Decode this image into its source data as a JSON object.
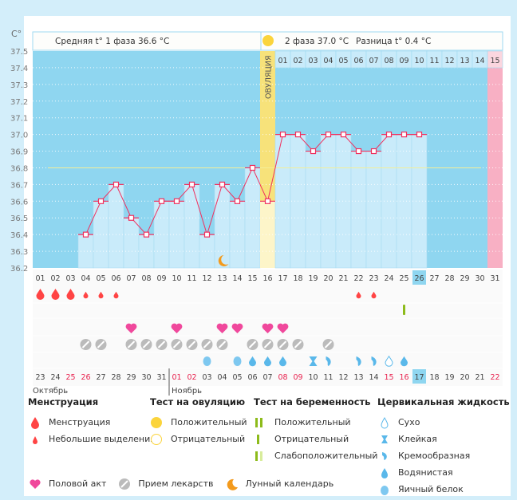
{
  "header": {
    "unit": "C°",
    "phase1": "Средняя t° 1 фаза 36.6 °C",
    "phase2": "2 фаза 37.0 °C",
    "diff": "Разница t° 0.4 °C",
    "ovulation": "ОВУЛЯЦИЯ"
  },
  "colors": {
    "bg": "#8fd6f0",
    "bar": "#c9ebfa",
    "line": "#f0305e",
    "ovulation": "#f7e27a",
    "next_period": "#f8b0c4",
    "coverline": "#f3ee9a"
  },
  "chart_data": {
    "type": "line",
    "ylim": [
      36.2,
      37.5
    ],
    "y_ticks": [
      "37.5",
      "37.4",
      "37.3",
      "37.2",
      "37.1",
      "37.0",
      "36.9",
      "36.8",
      "36.7",
      "36.6",
      "36.5",
      "36.4",
      "36.3",
      "36.2"
    ],
    "coverline": 36.8,
    "cycle_days": [
      "01",
      "02",
      "03",
      "04",
      "05",
      "06",
      "07",
      "08",
      "09",
      "10",
      "11",
      "12",
      "13",
      "14",
      "15",
      "16",
      "17",
      "18",
      "19",
      "20",
      "21",
      "22",
      "23",
      "24",
      "25",
      "26",
      "27",
      "28",
      "29",
      "30",
      "31"
    ],
    "post_ovulation_days": [
      "01",
      "02",
      "03",
      "04",
      "05",
      "06",
      "07",
      "08",
      "09",
      "10",
      "11",
      "12",
      "13",
      "14",
      "15"
    ],
    "temperatures": [
      null,
      null,
      null,
      36.4,
      36.6,
      36.7,
      36.5,
      36.4,
      36.6,
      36.6,
      36.7,
      36.4,
      36.7,
      36.6,
      36.8,
      36.6,
      37.0,
      37.0,
      36.9,
      37.0,
      37.0,
      36.9,
      36.9,
      37.0,
      37.0,
      37.0,
      null,
      null,
      null,
      null,
      null
    ],
    "ovulation_day": 16,
    "today_day": 26,
    "lunar_day": 13
  },
  "calendar": {
    "dates": [
      "23",
      "24",
      "25",
      "26",
      "27",
      "28",
      "29",
      "30",
      "31",
      "01",
      "02",
      "03",
      "04",
      "05",
      "06",
      "07",
      "08",
      "09",
      "10",
      "11",
      "12",
      "13",
      "14",
      "15",
      "16",
      "17",
      "18",
      "19",
      "20",
      "21",
      "22"
    ],
    "weekend_days": [
      3,
      4,
      10,
      11,
      17,
      18,
      24,
      25,
      31
    ],
    "months": [
      "Октябрь",
      "Ноябрь"
    ]
  },
  "markers": {
    "menstruation_heavy": [
      1,
      2,
      3
    ],
    "menstruation_light": [
      4,
      5,
      6,
      22,
      23
    ],
    "pregnancy_positive": [
      25
    ],
    "sex": [
      7,
      10,
      13,
      14,
      16,
      17
    ],
    "medication": [
      4,
      5,
      7,
      8,
      9,
      10,
      11,
      12,
      13,
      15,
      16,
      17,
      18,
      20
    ],
    "cervical": {
      "12": "egg-white",
      "14": "egg-white",
      "15": "watery",
      "16": "watery",
      "17": "watery",
      "19": "sticky",
      "20": "creamy",
      "22": "creamy",
      "23": "creamy",
      "24": "dry",
      "25": "watery"
    }
  },
  "legend": {
    "menstruation": {
      "title": "Менструация",
      "items": [
        "Менструация",
        "Небольшие выделения"
      ]
    },
    "ovulation_test": {
      "title": "Тест на овуляцию",
      "items": [
        "Положительный",
        "Отрицательный"
      ]
    },
    "pregnancy_test": {
      "title": "Тест на беременность",
      "items": [
        "Положительный",
        "Отрицательный",
        "Слабоположительный"
      ]
    },
    "cervical": {
      "title": "Цервикальная жидкость",
      "items": [
        "Сухо",
        "Клейкая",
        "Кремообразная",
        "Водянистая",
        "Яичный белок"
      ]
    },
    "other": [
      "Половой акт",
      "Прием лекарств",
      "Лунный календарь"
    ]
  }
}
